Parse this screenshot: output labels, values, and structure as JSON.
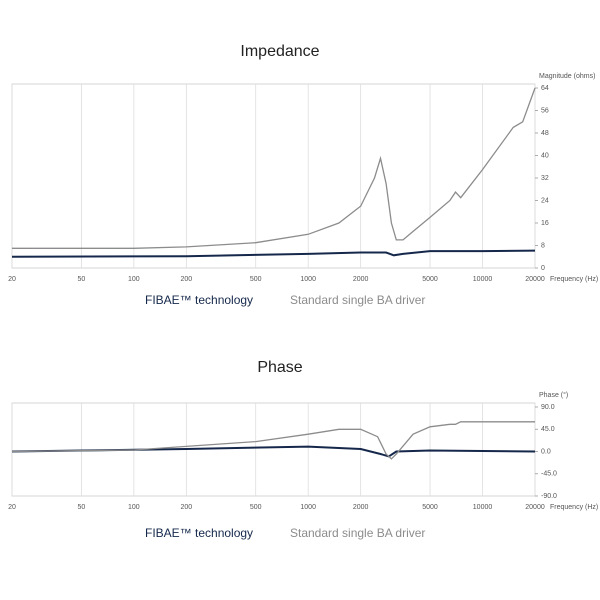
{
  "chart_data": [
    {
      "type": "line",
      "title": "Impedance",
      "y_label": "Magnitude (ohms)",
      "x_label": "Frequency (Hz)",
      "xscale": "log",
      "xlim": [
        20,
        20000
      ],
      "xticks": [
        20,
        50,
        100,
        200,
        500,
        1000,
        2000,
        5000,
        10000,
        20000
      ],
      "ylim": [
        0,
        64
      ],
      "yticks": [
        0,
        8,
        16,
        24,
        32,
        40,
        48,
        56,
        64
      ],
      "grid": true,
      "legend": "bottom",
      "series": [
        {
          "name": "FIBAE™ technology",
          "color": "#15284b",
          "x": [
            20,
            200,
            1000,
            2000,
            2800,
            3100,
            3500,
            5000,
            10000,
            20000
          ],
          "values": [
            4,
            4.2,
            5,
            5.5,
            5.5,
            4.5,
            5,
            6,
            6,
            6.2
          ]
        },
        {
          "name": "Standard single BA driver",
          "color": "#8c8c8c",
          "x": [
            20,
            100,
            200,
            500,
            1000,
            1500,
            2000,
            2400,
            2600,
            2800,
            3000,
            3200,
            3500,
            4000,
            5000,
            6500,
            7000,
            7500,
            10000,
            15000,
            17000,
            20000
          ],
          "values": [
            7,
            7,
            7.5,
            9,
            12,
            16,
            22,
            32,
            39,
            30,
            16,
            10,
            10,
            13,
            18,
            24,
            27,
            25,
            35,
            50,
            52,
            64
          ]
        }
      ]
    },
    {
      "type": "line",
      "title": "Phase",
      "y_label": "Phase (°)",
      "x_label": "Frequency (Hz)",
      "xscale": "log",
      "xlim": [
        20,
        20000
      ],
      "xticks": [
        20,
        50,
        100,
        200,
        500,
        1000,
        2000,
        5000,
        10000,
        20000
      ],
      "ylim": [
        -90,
        90
      ],
      "yticks": [
        {
          "value": -90,
          "label": "-90.0"
        },
        {
          "value": -45,
          "label": "-45.0"
        },
        {
          "value": 0,
          "label": "0.0"
        },
        {
          "value": 45,
          "label": "45.0"
        },
        {
          "value": 90,
          "label": "90.0"
        }
      ],
      "grid": true,
      "legend": "bottom",
      "series": [
        {
          "name": "FIBAE™ technology",
          "color": "#15284b",
          "x": [
            20,
            200,
            1000,
            2000,
            2600,
            2900,
            3200,
            5000,
            20000
          ],
          "values": [
            0,
            5,
            10,
            5,
            -5,
            -10,
            0,
            2,
            0
          ]
        },
        {
          "name": "Standard single BA driver",
          "color": "#8c8c8c",
          "x": [
            20,
            100,
            500,
            1000,
            1500,
            2000,
            2500,
            2800,
            3000,
            3200,
            4000,
            5000,
            6500,
            7000,
            7500,
            20000
          ],
          "values": [
            0,
            3,
            20,
            35,
            45,
            45,
            30,
            -5,
            -15,
            -5,
            35,
            50,
            55,
            55,
            60,
            60
          ]
        }
      ]
    }
  ]
}
